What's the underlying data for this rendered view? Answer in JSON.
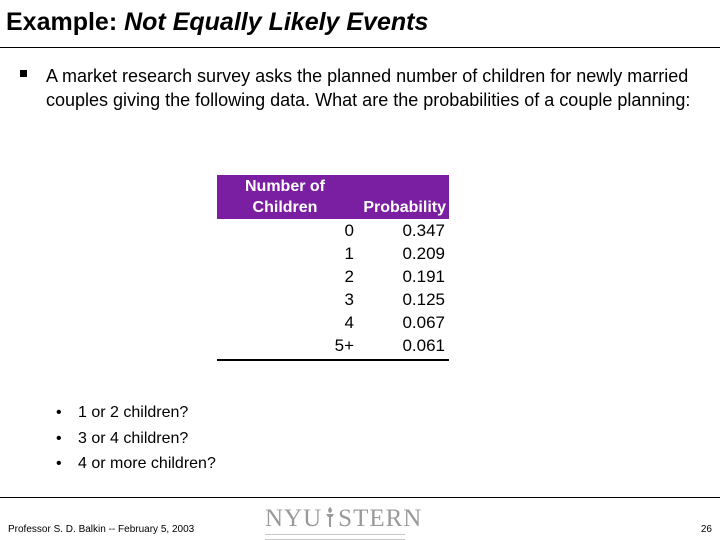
{
  "slide": {
    "title_prefix": "Example: ",
    "title_emphasis": "Not Equally Likely Events",
    "intro": "A market research survey asks the planned number of children for newly married couples giving the following data.  What are the probabilities of a couple planning:"
  },
  "table": {
    "headers": {
      "children_line1": "Number of",
      "children_line2": "Children",
      "probability": "Probability"
    },
    "header_color": "#7a1fa2",
    "rows": [
      {
        "children": "0",
        "probability": "0.347"
      },
      {
        "children": "1",
        "probability": "0.209"
      },
      {
        "children": "2",
        "probability": "0.191"
      },
      {
        "children": "3",
        "probability": "0.125"
      },
      {
        "children": "4",
        "probability": "0.067"
      },
      {
        "children": "5+",
        "probability": "0.061"
      }
    ]
  },
  "questions": [
    "1 or 2 children?",
    "3 or 4 children?",
    "4 or more children?"
  ],
  "footer": {
    "author": "Professor S. D. Balkin -- February 5, 2003",
    "logo_left": "NYU",
    "logo_right": "STERN",
    "page_number": "26"
  }
}
